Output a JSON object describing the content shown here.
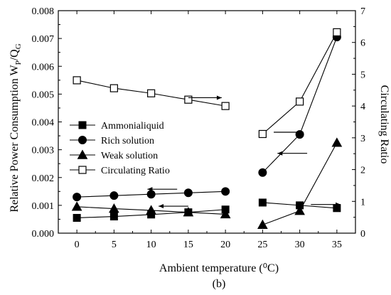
{
  "chart_data": {
    "type": "line",
    "caption": "(b)",
    "xlabel": "Ambient temperature (⁰C)",
    "ylabel_left": "Relative Power Consumption W",
    "ylabel_left_sub1": "P",
    "ylabel_left_mid": "/Q",
    "ylabel_left_sub2": "G",
    "ylabel_right": "Circulating Ratio",
    "x_ticks": [
      "0",
      "5",
      "10",
      "15",
      "20",
      "25",
      "30",
      "35"
    ],
    "xlim": [
      -2.5,
      37.5
    ],
    "ylim_left": [
      0,
      0.008
    ],
    "left_ticks": [
      {
        "value": 0.0,
        "label": "0.000"
      },
      {
        "value": 0.001,
        "label": "0.001"
      },
      {
        "value": 0.002,
        "label": "0.002"
      },
      {
        "value": 0.003,
        "label": "0.003"
      },
      {
        "value": 0.004,
        "label": "0.004"
      },
      {
        "value": 0.005,
        "label": "0.005"
      },
      {
        "value": 0.006,
        "label": "0.006"
      },
      {
        "value": 0.007,
        "label": "0.007"
      },
      {
        "value": 0.008,
        "label": "0.008"
      }
    ],
    "ylim_right": [
      0,
      7
    ],
    "right_ticks": [
      {
        "value": 0,
        "label": "0"
      },
      {
        "value": 1,
        "label": "1"
      },
      {
        "value": 2,
        "label": "2"
      },
      {
        "value": 3,
        "label": "3"
      },
      {
        "value": 4,
        "label": "4"
      },
      {
        "value": 5,
        "label": "5"
      },
      {
        "value": 6,
        "label": "6"
      },
      {
        "value": 7,
        "label": "7"
      }
    ],
    "legend_position": "middle-left",
    "series": [
      {
        "name": "Ammonialiquid",
        "marker": "square-filled",
        "axis": "left",
        "segments": [
          [
            [
              0,
              0.00055
            ],
            [
              5,
              0.0006
            ],
            [
              10,
              0.00067
            ],
            [
              15,
              0.00075
            ],
            [
              20,
              0.00085
            ]
          ],
          [
            [
              25,
              0.0011
            ],
            [
              30,
              0.001
            ],
            [
              35,
              0.0009
            ]
          ]
        ]
      },
      {
        "name": "Rich solution",
        "marker": "circle-filled",
        "axis": "left",
        "segments": [
          [
            [
              0,
              0.0013
            ],
            [
              5,
              0.00135
            ],
            [
              10,
              0.0014
            ],
            [
              15,
              0.00145
            ],
            [
              20,
              0.0015
            ]
          ],
          [
            [
              25,
              0.00218
            ],
            [
              30,
              0.00355
            ],
            [
              35,
              0.00705
            ]
          ]
        ]
      },
      {
        "name": "Weak solution",
        "marker": "triangle-filled",
        "axis": "left",
        "segments": [
          [
            [
              0,
              0.00095
            ],
            [
              5,
              0.00088
            ],
            [
              10,
              0.00082
            ],
            [
              15,
              0.00075
            ],
            [
              20,
              0.00068
            ]
          ],
          [
            [
              25,
              0.0003
            ],
            [
              30,
              0.0008
            ],
            [
              35,
              0.00325
            ]
          ]
        ]
      },
      {
        "name": "Circulating Ratio",
        "marker": "square-open",
        "axis": "right",
        "segments": [
          [
            [
              0,
              4.81
            ],
            [
              5,
              4.56
            ],
            [
              10,
              4.4
            ],
            [
              15,
              4.2
            ],
            [
              20,
              4.0
            ]
          ],
          [
            [
              25,
              3.12
            ],
            [
              30,
              4.14
            ],
            [
              35,
              6.32
            ]
          ]
        ]
      }
    ],
    "annotations": [
      {
        "type": "arrow",
        "direction": "right",
        "at": [
          15.0,
          0.00487
        ],
        "length": 4.5
      },
      {
        "type": "arrow",
        "direction": "left",
        "at": [
          9.5,
          0.00158
        ],
        "length": 4.0
      },
      {
        "type": "arrow",
        "direction": "left",
        "at": [
          11.0,
          0.00097
        ],
        "length": 4.0
      },
      {
        "type": "arrow",
        "direction": "right",
        "at": [
          26.5,
          0.00363
        ],
        "length": 4.0
      },
      {
        "type": "arrow",
        "direction": "left",
        "at": [
          27.0,
          0.00287
        ],
        "length": 4.0
      },
      {
        "type": "arrow",
        "direction": "right",
        "at": [
          31.5,
          0.00103
        ],
        "length": 4.0
      }
    ]
  }
}
